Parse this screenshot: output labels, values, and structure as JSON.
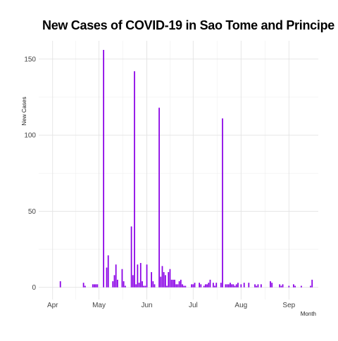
{
  "chart_data": {
    "type": "bar",
    "title": "New Cases of COVID-19 in Sao Tome and Principe",
    "xlabel": "Month",
    "ylabel": "New Cases",
    "x_ticks": [
      "Apr",
      "May",
      "Jun",
      "Jul",
      "Aug",
      "Sep"
    ],
    "x_tick_dates": [
      "2020-04-01",
      "2020-05-01",
      "2020-06-01",
      "2020-07-01",
      "2020-08-01",
      "2020-09-01"
    ],
    "y_ticks": [
      0,
      50,
      100,
      150
    ],
    "ylim": [
      -8,
      162
    ],
    "xlim": [
      "2020-03-23",
      "2020-09-20"
    ],
    "grid": true,
    "bar_color": "#8a00e6",
    "series": [
      {
        "x": [
          "2020-04-06",
          "2020-04-21",
          "2020-04-22",
          "2020-04-27",
          "2020-04-28",
          "2020-04-29",
          "2020-04-30",
          "2020-05-04",
          "2020-05-06",
          "2020-05-07",
          "2020-05-10",
          "2020-05-11",
          "2020-05-12",
          "2020-05-13",
          "2020-05-16",
          "2020-05-17",
          "2020-05-18",
          "2020-05-22",
          "2020-05-23",
          "2020-05-24",
          "2020-05-25",
          "2020-05-26",
          "2020-05-27",
          "2020-05-28",
          "2020-05-29",
          "2020-05-30",
          "2020-05-31",
          "2020-06-01",
          "2020-06-04",
          "2020-06-05",
          "2020-06-06",
          "2020-06-09",
          "2020-06-10",
          "2020-06-11",
          "2020-06-12",
          "2020-06-13",
          "2020-06-14",
          "2020-06-15",
          "2020-06-16",
          "2020-06-17",
          "2020-06-18",
          "2020-06-19",
          "2020-06-20",
          "2020-06-21",
          "2020-06-22",
          "2020-06-23",
          "2020-06-24",
          "2020-06-25",
          "2020-06-26",
          "2020-06-30",
          "2020-07-01",
          "2020-07-02",
          "2020-07-05",
          "2020-07-06",
          "2020-07-08",
          "2020-07-09",
          "2020-07-10",
          "2020-07-11",
          "2020-07-12",
          "2020-07-14",
          "2020-07-15",
          "2020-07-16",
          "2020-07-19",
          "2020-07-20",
          "2020-07-22",
          "2020-07-23",
          "2020-07-24",
          "2020-07-25",
          "2020-07-26",
          "2020-07-27",
          "2020-07-28",
          "2020-07-29",
          "2020-07-30",
          "2020-08-01",
          "2020-08-03",
          "2020-08-06",
          "2020-08-10",
          "2020-08-11",
          "2020-08-12",
          "2020-08-14",
          "2020-08-20",
          "2020-08-21",
          "2020-08-26",
          "2020-08-27",
          "2020-08-28",
          "2020-09-01",
          "2020-09-04",
          "2020-09-05",
          "2020-09-09",
          "2020-09-15",
          "2020-09-16"
        ],
        "values": [
          4,
          3,
          1,
          2,
          2,
          2,
          2,
          156,
          13,
          21,
          4,
          8,
          15,
          5,
          12,
          4,
          1,
          40,
          8,
          142,
          2,
          15,
          3,
          16,
          4,
          1,
          1,
          15,
          10,
          4,
          2,
          118,
          7,
          14,
          10,
          8,
          1,
          10,
          12,
          5,
          5,
          5,
          2,
          2,
          4,
          5,
          2,
          1,
          1,
          2,
          2,
          3,
          3,
          2,
          1,
          2,
          2,
          3,
          5,
          3,
          1,
          3,
          3,
          111,
          2,
          2,
          2,
          3,
          2,
          2,
          1,
          2,
          3,
          2,
          3,
          3,
          2,
          1,
          2,
          2,
          4,
          3,
          2,
          1,
          2,
          1,
          2,
          1,
          1,
          1,
          5
        ]
      }
    ]
  }
}
